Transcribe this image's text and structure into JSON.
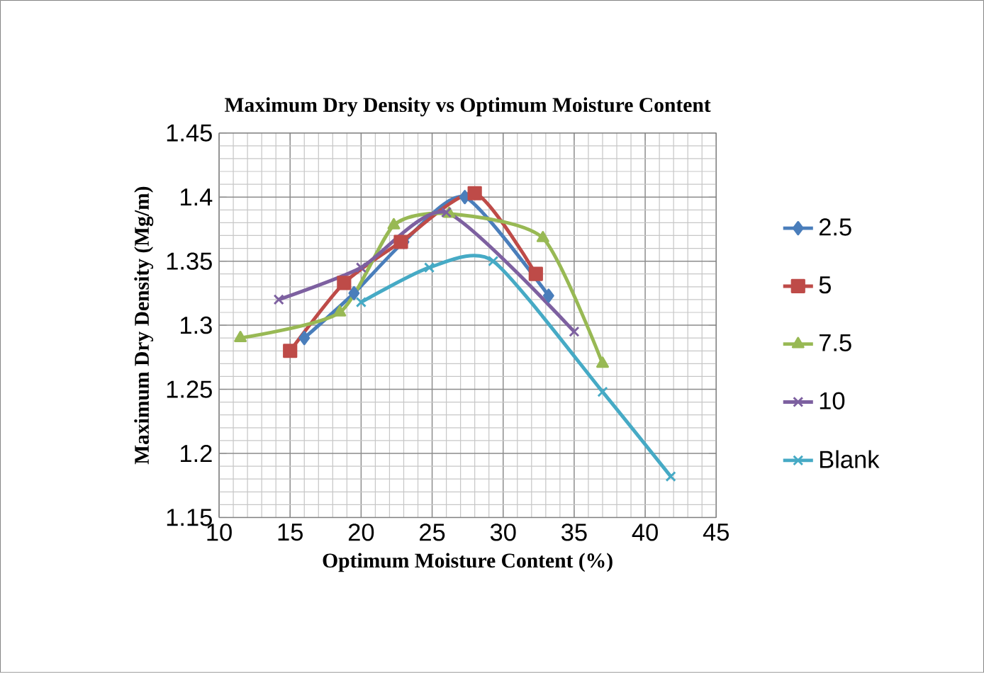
{
  "chart_data": {
    "type": "line",
    "title": "Maximum Dry Density vs Optimum Moisture Content",
    "xlabel": "Optimum Moisture Content (%)",
    "ylabel": "Maximum Dry Density (Mg/m)",
    "xlim": [
      10,
      45
    ],
    "xticks": [
      10,
      15,
      20,
      25,
      30,
      35,
      40,
      45
    ],
    "ylim": [
      1.15,
      1.45
    ],
    "yticks": [
      1.15,
      1.2,
      1.25,
      1.3,
      1.35,
      1.4,
      1.45
    ],
    "grid": true,
    "legend": "right",
    "series": [
      {
        "name": "2.5",
        "color": "#4a7ebb",
        "marker": "diamond",
        "x": [
          16,
          19.5,
          23,
          27.3,
          33.2
        ],
        "values": [
          1.29,
          1.325,
          1.365,
          1.4,
          1.323
        ]
      },
      {
        "name": "5",
        "color": "#be4b48",
        "marker": "square",
        "x": [
          15,
          18.8,
          22.8,
          28,
          32.3
        ],
        "values": [
          1.28,
          1.333,
          1.365,
          1.403,
          1.34
        ]
      },
      {
        "name": "7.5",
        "color": "#98b954",
        "marker": "triangle",
        "x": [
          11.5,
          18.5,
          22.3,
          26.2,
          32.8,
          37
        ],
        "values": [
          1.29,
          1.31,
          1.378,
          1.387,
          1.368,
          1.27
        ]
      },
      {
        "name": "10",
        "color": "#7d60a0",
        "marker": "cross",
        "x": [
          14.2,
          20,
          26,
          35
        ],
        "values": [
          1.32,
          1.345,
          1.388,
          1.295
        ]
      },
      {
        "name": "Blank",
        "color": "#46aac5",
        "marker": "cross",
        "x": [
          20,
          24.8,
          29.3,
          37,
          41.8
        ],
        "values": [
          1.318,
          1.345,
          1.35,
          1.248,
          1.182
        ]
      }
    ]
  }
}
